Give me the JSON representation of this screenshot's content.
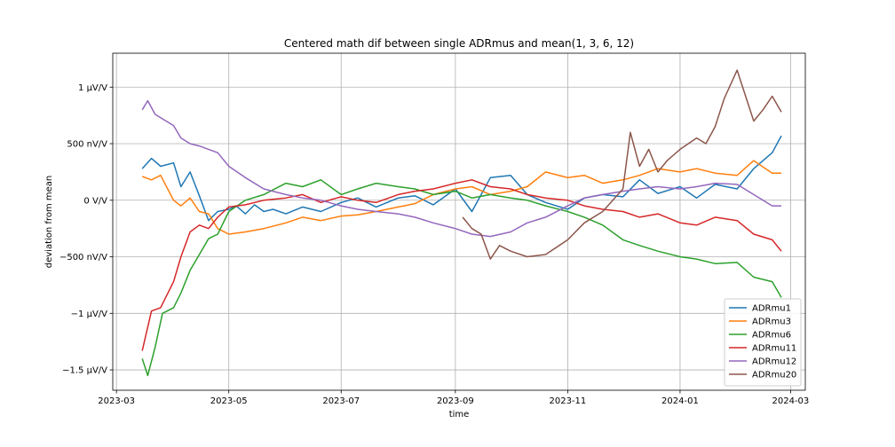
{
  "chart_data": {
    "type": "line",
    "title": "Centered math dif between single ADRmus and mean(1, 3, 6, 12)",
    "xlabel": "time",
    "ylabel": "deviation from mean",
    "x_tick_labels": [
      "2023-03",
      "2023-05",
      "2023-07",
      "2023-09",
      "2023-11",
      "2024-01",
      "2024-03"
    ],
    "y_tick_labels": [
      "−1.5 µV/V",
      "−1 µV/V",
      "−500 nV/V",
      "0 V/V",
      "500 nV/V",
      "1 µV/V"
    ],
    "ylim": [
      -1.68,
      1.3
    ],
    "xlim": [
      "2023-02-27",
      "2024-03-09"
    ],
    "grid": true,
    "legend_position": "lower right",
    "y_unit_note": "values in µV/V",
    "series": [
      {
        "name": "ADRmu1",
        "color": "#1f77b4",
        "x": [
          "2023-03-15",
          "2023-03-20",
          "2023-03-25",
          "2023-04-01",
          "2023-04-05",
          "2023-04-10",
          "2023-04-15",
          "2023-04-20",
          "2023-04-25",
          "2023-05-01",
          "2023-05-05",
          "2023-05-10",
          "2023-05-15",
          "2023-05-20",
          "2023-05-25",
          "2023-06-01",
          "2023-06-10",
          "2023-06-20",
          "2023-07-01",
          "2023-07-10",
          "2023-07-20",
          "2023-08-01",
          "2023-08-10",
          "2023-08-20",
          "2023-09-01",
          "2023-09-10",
          "2023-09-20",
          "2023-10-01",
          "2023-10-10",
          "2023-10-20",
          "2023-11-01",
          "2023-11-10",
          "2023-11-20",
          "2023-12-01",
          "2023-12-10",
          "2023-12-20",
          "2024-01-01",
          "2024-01-10",
          "2024-01-20",
          "2024-02-01",
          "2024-02-10",
          "2024-02-20",
          "2024-02-25"
        ],
        "y": [
          0.28,
          0.37,
          0.3,
          0.33,
          0.12,
          0.25,
          0.04,
          -0.18,
          -0.1,
          -0.08,
          -0.05,
          -0.12,
          -0.04,
          -0.1,
          -0.08,
          -0.12,
          -0.06,
          -0.1,
          -0.02,
          0.02,
          -0.06,
          0.02,
          0.04,
          -0.04,
          0.1,
          -0.1,
          0.2,
          0.22,
          0.05,
          -0.02,
          -0.08,
          0.02,
          0.05,
          0.03,
          0.18,
          0.06,
          0.12,
          0.02,
          0.14,
          0.1,
          0.28,
          0.42,
          0.57
        ]
      },
      {
        "name": "ADRmu3",
        "color": "#ff7f0e",
        "x": [
          "2023-03-15",
          "2023-03-20",
          "2023-03-25",
          "2023-04-01",
          "2023-04-05",
          "2023-04-10",
          "2023-04-15",
          "2023-04-20",
          "2023-04-25",
          "2023-05-01",
          "2023-05-10",
          "2023-05-20",
          "2023-06-01",
          "2023-06-10",
          "2023-06-20",
          "2023-07-01",
          "2023-07-10",
          "2023-07-20",
          "2023-08-01",
          "2023-08-10",
          "2023-08-20",
          "2023-09-01",
          "2023-09-10",
          "2023-09-20",
          "2023-10-01",
          "2023-10-10",
          "2023-10-20",
          "2023-11-01",
          "2023-11-10",
          "2023-11-20",
          "2023-12-01",
          "2023-12-10",
          "2023-12-20",
          "2024-01-01",
          "2024-01-10",
          "2024-01-20",
          "2024-02-01",
          "2024-02-10",
          "2024-02-20",
          "2024-02-25"
        ],
        "y": [
          0.21,
          0.18,
          0.22,
          0.0,
          -0.05,
          0.02,
          -0.1,
          -0.12,
          -0.25,
          -0.3,
          -0.28,
          -0.25,
          -0.2,
          -0.15,
          -0.18,
          -0.14,
          -0.13,
          -0.1,
          -0.06,
          -0.03,
          0.05,
          0.1,
          0.12,
          0.05,
          0.08,
          0.12,
          0.25,
          0.2,
          0.22,
          0.15,
          0.18,
          0.22,
          0.28,
          0.25,
          0.28,
          0.24,
          0.22,
          0.35,
          0.24,
          0.24
        ]
      },
      {
        "name": "ADRmu6",
        "color": "#2ca02c",
        "x": [
          "2023-03-15",
          "2023-03-18",
          "2023-03-22",
          "2023-03-26",
          "2023-04-01",
          "2023-04-05",
          "2023-04-10",
          "2023-04-15",
          "2023-04-20",
          "2023-04-25",
          "2023-05-01",
          "2023-05-10",
          "2023-05-20",
          "2023-06-01",
          "2023-06-10",
          "2023-06-20",
          "2023-07-01",
          "2023-07-10",
          "2023-07-20",
          "2023-08-01",
          "2023-08-10",
          "2023-08-20",
          "2023-09-01",
          "2023-09-10",
          "2023-09-20",
          "2023-10-01",
          "2023-10-10",
          "2023-10-20",
          "2023-11-01",
          "2023-11-10",
          "2023-11-20",
          "2023-12-01",
          "2023-12-10",
          "2023-12-20",
          "2024-01-01",
          "2024-01-10",
          "2024-01-20",
          "2024-02-01",
          "2024-02-10",
          "2024-02-20",
          "2024-02-25"
        ],
        "y": [
          -1.4,
          -1.55,
          -1.3,
          -1.0,
          -0.95,
          -0.82,
          -0.62,
          -0.48,
          -0.34,
          -0.3,
          -0.1,
          0.0,
          0.05,
          0.15,
          0.12,
          0.18,
          0.05,
          0.1,
          0.15,
          0.12,
          0.1,
          0.05,
          0.08,
          0.02,
          0.05,
          0.02,
          0.0,
          -0.05,
          -0.1,
          -0.15,
          -0.22,
          -0.35,
          -0.4,
          -0.45,
          -0.5,
          -0.52,
          -0.56,
          -0.55,
          -0.68,
          -0.72,
          -0.86
        ]
      },
      {
        "name": "ADRmu11",
        "color": "#d62728",
        "x": [
          "2023-03-15",
          "2023-03-20",
          "2023-03-25",
          "2023-04-01",
          "2023-04-05",
          "2023-04-10",
          "2023-04-15",
          "2023-04-20",
          "2023-04-25",
          "2023-05-01",
          "2023-05-10",
          "2023-05-20",
          "2023-06-01",
          "2023-06-10",
          "2023-06-20",
          "2023-07-01",
          "2023-07-10",
          "2023-07-20",
          "2023-08-01",
          "2023-08-10",
          "2023-08-20",
          "2023-09-01",
          "2023-09-10",
          "2023-09-20",
          "2023-10-01",
          "2023-10-10",
          "2023-10-20",
          "2023-11-01",
          "2023-11-10",
          "2023-11-20",
          "2023-12-01",
          "2023-12-10",
          "2023-12-20",
          "2024-01-01",
          "2024-01-10",
          "2024-01-20",
          "2024-02-01",
          "2024-02-10",
          "2024-02-20",
          "2024-02-25"
        ],
        "y": [
          -1.33,
          -0.98,
          -0.95,
          -0.72,
          -0.5,
          -0.28,
          -0.22,
          -0.25,
          -0.15,
          -0.06,
          -0.04,
          0.0,
          0.02,
          0.05,
          -0.02,
          0.03,
          0.0,
          -0.02,
          0.05,
          0.08,
          0.1,
          0.15,
          0.18,
          0.12,
          0.1,
          0.05,
          0.02,
          0.0,
          -0.05,
          -0.08,
          -0.1,
          -0.15,
          -0.12,
          -0.2,
          -0.22,
          -0.15,
          -0.18,
          -0.3,
          -0.35,
          -0.45
        ]
      },
      {
        "name": "ADRmu12",
        "color": "#9467bd",
        "x": [
          "2023-03-15",
          "2023-03-18",
          "2023-03-22",
          "2023-03-26",
          "2023-04-01",
          "2023-04-05",
          "2023-04-10",
          "2023-04-15",
          "2023-04-20",
          "2023-04-25",
          "2023-05-01",
          "2023-05-10",
          "2023-05-20",
          "2023-06-01",
          "2023-06-10",
          "2023-06-20",
          "2023-07-01",
          "2023-07-10",
          "2023-07-20",
          "2023-08-01",
          "2023-08-10",
          "2023-08-20",
          "2023-09-01",
          "2023-09-10",
          "2023-09-20",
          "2023-10-01",
          "2023-10-10",
          "2023-10-20",
          "2023-11-01",
          "2023-11-10",
          "2023-11-20",
          "2023-12-01",
          "2023-12-10",
          "2023-12-20",
          "2024-01-01",
          "2024-01-10",
          "2024-01-20",
          "2024-02-01",
          "2024-02-10",
          "2024-02-20",
          "2024-02-25"
        ],
        "y": [
          0.8,
          0.88,
          0.76,
          0.72,
          0.66,
          0.55,
          0.5,
          0.48,
          0.45,
          0.42,
          0.3,
          0.2,
          0.1,
          0.05,
          0.02,
          0.0,
          -0.05,
          -0.08,
          -0.1,
          -0.12,
          -0.15,
          -0.2,
          -0.25,
          -0.3,
          -0.32,
          -0.28,
          -0.2,
          -0.15,
          -0.05,
          0.02,
          0.05,
          0.08,
          0.1,
          0.12,
          0.1,
          0.12,
          0.15,
          0.14,
          0.05,
          -0.05,
          -0.05
        ]
      },
      {
        "name": "ADRmu20",
        "color": "#8c564b",
        "x": [
          "2023-09-05",
          "2023-09-10",
          "2023-09-15",
          "2023-09-20",
          "2023-09-25",
          "2023-10-01",
          "2023-10-10",
          "2023-10-20",
          "2023-11-01",
          "2023-11-10",
          "2023-11-20",
          "2023-12-01",
          "2023-12-05",
          "2023-12-10",
          "2023-12-15",
          "2023-12-20",
          "2023-12-25",
          "2024-01-01",
          "2024-01-10",
          "2024-01-15",
          "2024-01-20",
          "2024-01-25",
          "2024-02-01",
          "2024-02-05",
          "2024-02-10",
          "2024-02-15",
          "2024-02-20",
          "2024-02-25"
        ],
        "y": [
          -0.15,
          -0.25,
          -0.3,
          -0.52,
          -0.4,
          -0.45,
          -0.5,
          -0.48,
          -0.35,
          -0.2,
          -0.1,
          0.1,
          0.6,
          0.3,
          0.45,
          0.25,
          0.35,
          0.45,
          0.55,
          0.5,
          0.65,
          0.9,
          1.15,
          0.95,
          0.7,
          0.8,
          0.92,
          0.78
        ]
      }
    ]
  }
}
